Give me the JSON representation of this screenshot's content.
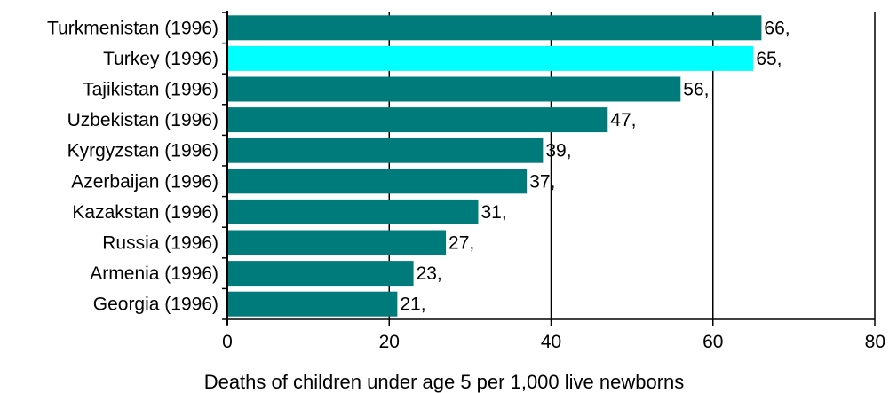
{
  "chart_data": {
    "type": "bar",
    "orientation": "horizontal",
    "categories": [
      "Turkmenistan (1996)",
      "Turkey (1996)",
      "Tajikistan (1996)",
      "Uzbekistan (1996)",
      "Kyrgyzstan (1996)",
      "Azerbaijan (1996)",
      "Kazakstan (1996)",
      "Russia (1996)",
      "Armenia (1996)",
      "Georgia (1996)"
    ],
    "values": [
      66,
      65,
      56,
      47,
      39,
      37,
      31,
      27,
      23,
      21
    ],
    "value_labels": [
      "66,",
      "65,",
      "56,",
      "47,",
      "39,",
      "37,",
      "31,",
      "27,",
      "23,",
      "21,"
    ],
    "highlight_index": 1,
    "xlabel": "Deaths of children under age 5 per 1,000 live newborns",
    "xlim": [
      0,
      80
    ],
    "xticks": [
      0,
      20,
      40,
      60,
      80
    ],
    "grid": "vertical",
    "colors": {
      "bar": "#007b7b",
      "highlight": "#00ffff",
      "grid": "#000000"
    }
  }
}
